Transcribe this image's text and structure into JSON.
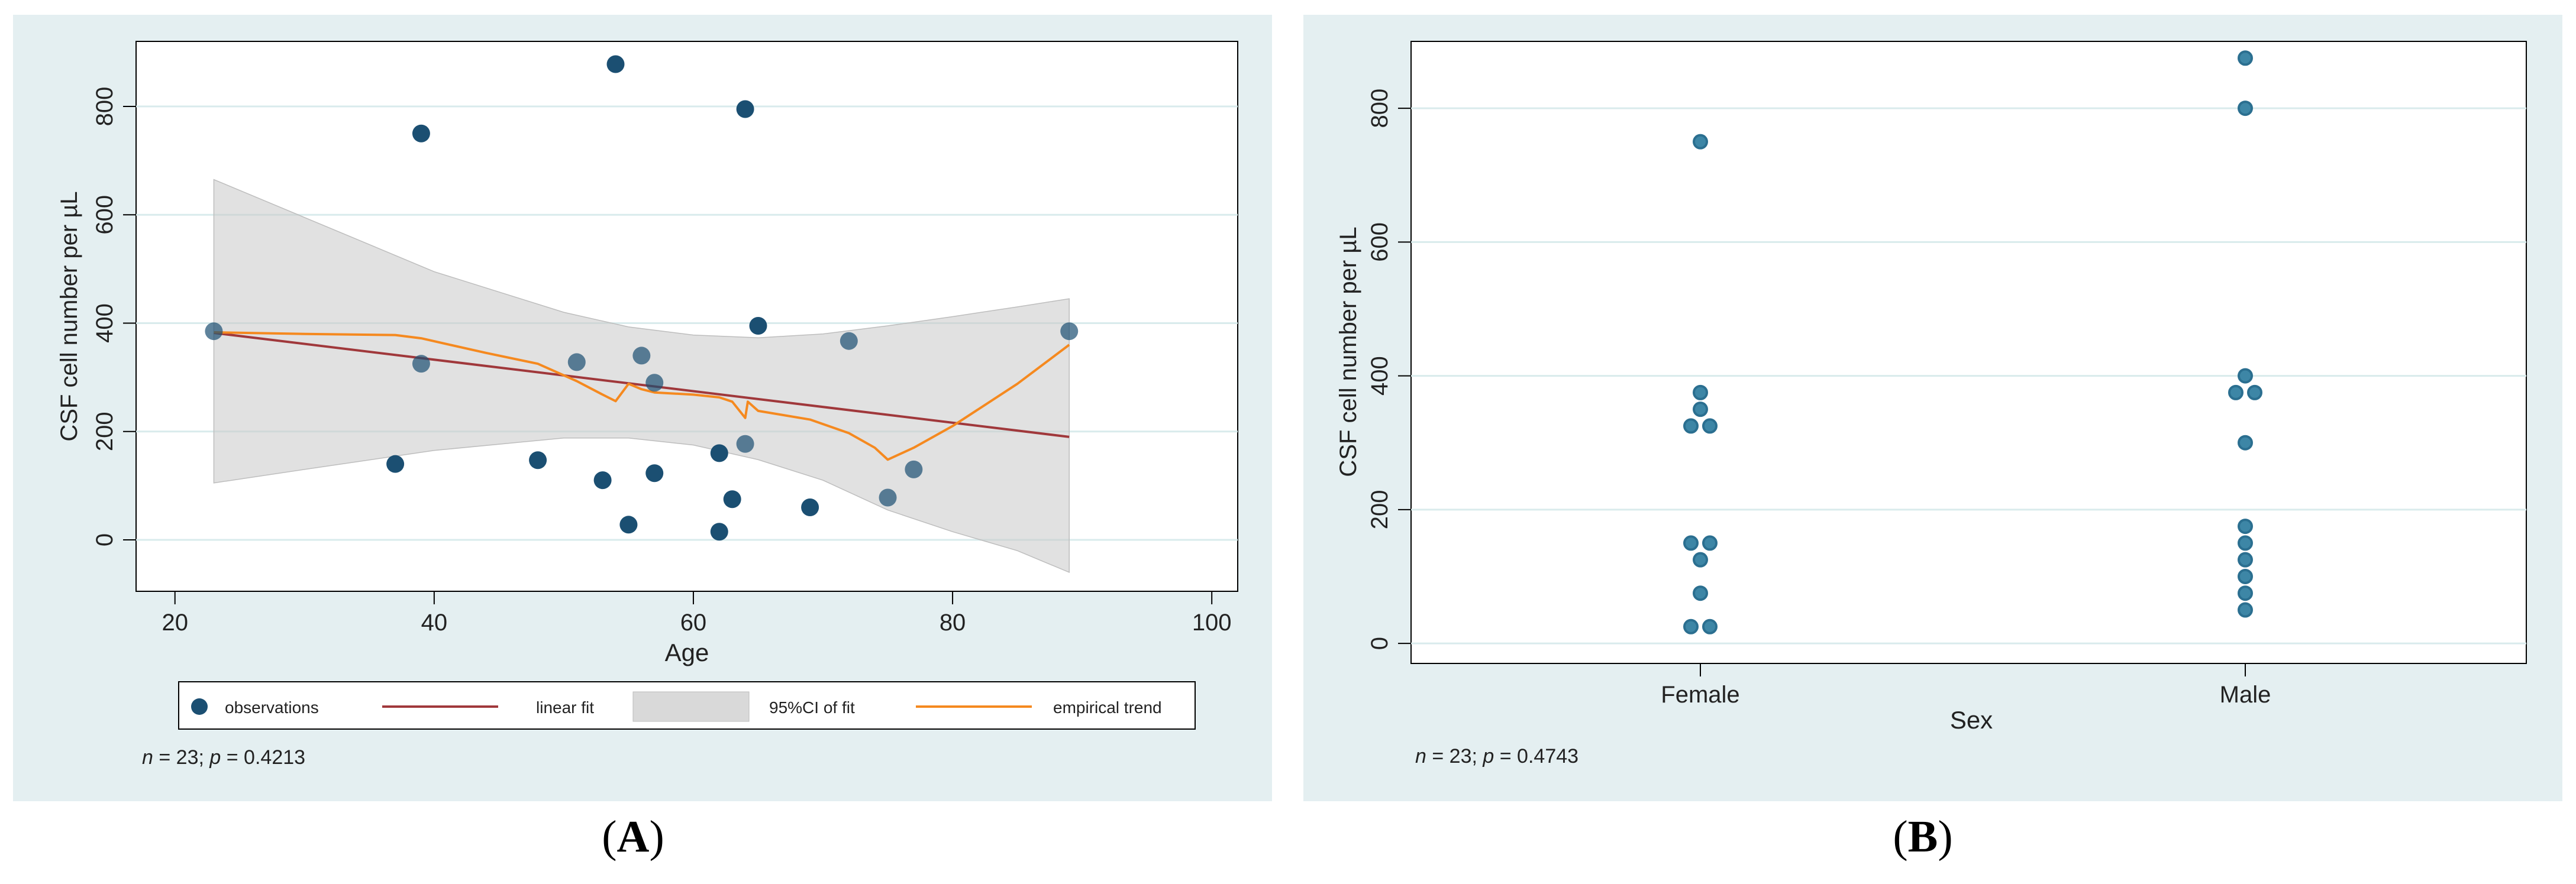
{
  "panels": [
    {
      "label": "A",
      "note_n": "n",
      "note_rest": " = 23; ",
      "note_p": "p",
      "note_value": " = 0.4213"
    },
    {
      "label": "B",
      "note_n": "n",
      "note_rest": " = 23; ",
      "note_p": "p",
      "note_value": " = 0.4743"
    }
  ],
  "colors": {
    "panel_bg": "#e4eff1",
    "plot_bg": "#ffffff",
    "grid": "#d9ebec",
    "marker": "#1b4f72",
    "marker_b": "#2b6f90",
    "marker_b_fill": "#3d86a6",
    "linear_fit": "#a0383b",
    "ci_fill": "#c8c8c8",
    "empirical": "#f5891f"
  },
  "chart_data": [
    {
      "type": "scatter",
      "title": "",
      "xlabel": "Age",
      "ylabel": "CSF cell number per µL",
      "xlim": [
        17,
        102
      ],
      "ylim": [
        -95,
        920
      ],
      "xticks": [
        20,
        40,
        60,
        80,
        100
      ],
      "yticks": [
        0,
        200,
        400,
        600,
        800
      ],
      "grid": "horizontal",
      "legend": {
        "position": "bottom",
        "items": [
          "observations",
          "linear fit",
          "95%CI of fit",
          "empirical trend"
        ]
      },
      "series": [
        {
          "name": "observations",
          "type": "scatter",
          "points": [
            {
              "x": 23,
              "y": 385
            },
            {
              "x": 37,
              "y": 140
            },
            {
              "x": 39,
              "y": 750
            },
            {
              "x": 39,
              "y": 325
            },
            {
              "x": 48,
              "y": 147
            },
            {
              "x": 51,
              "y": 328
            },
            {
              "x": 53,
              "y": 110
            },
            {
              "x": 54,
              "y": 878
            },
            {
              "x": 55,
              "y": 28
            },
            {
              "x": 56,
              "y": 340
            },
            {
              "x": 57,
              "y": 290
            },
            {
              "x": 57,
              "y": 123
            },
            {
              "x": 62,
              "y": 160
            },
            {
              "x": 62,
              "y": 15
            },
            {
              "x": 63,
              "y": 75
            },
            {
              "x": 64,
              "y": 795
            },
            {
              "x": 64,
              "y": 177
            },
            {
              "x": 65,
              "y": 395
            },
            {
              "x": 69,
              "y": 60
            },
            {
              "x": 72,
              "y": 367
            },
            {
              "x": 75,
              "y": 78
            },
            {
              "x": 77,
              "y": 130
            },
            {
              "x": 89,
              "y": 385
            }
          ]
        },
        {
          "name": "linear fit",
          "type": "line",
          "points": [
            {
              "x": 23,
              "y": 382
            },
            {
              "x": 89,
              "y": 190
            }
          ]
        },
        {
          "name": "95%CI of fit",
          "type": "area",
          "upper": [
            {
              "x": 23,
              "y": 665
            },
            {
              "x": 30,
              "y": 595
            },
            {
              "x": 40,
              "y": 495
            },
            {
              "x": 50,
              "y": 420
            },
            {
              "x": 55,
              "y": 393
            },
            {
              "x": 60,
              "y": 378
            },
            {
              "x": 65,
              "y": 373
            },
            {
              "x": 70,
              "y": 380
            },
            {
              "x": 75,
              "y": 395
            },
            {
              "x": 80,
              "y": 412
            },
            {
              "x": 85,
              "y": 430
            },
            {
              "x": 89,
              "y": 445
            }
          ],
          "lower": [
            {
              "x": 23,
              "y": 105
            },
            {
              "x": 30,
              "y": 130
            },
            {
              "x": 40,
              "y": 165
            },
            {
              "x": 50,
              "y": 188
            },
            {
              "x": 55,
              "y": 188
            },
            {
              "x": 60,
              "y": 175
            },
            {
              "x": 65,
              "y": 148
            },
            {
              "x": 70,
              "y": 110
            },
            {
              "x": 75,
              "y": 55
            },
            {
              "x": 80,
              "y": 15
            },
            {
              "x": 85,
              "y": -20
            },
            {
              "x": 89,
              "y": -60
            }
          ]
        },
        {
          "name": "empirical trend",
          "type": "line",
          "points": [
            {
              "x": 23,
              "y": 383
            },
            {
              "x": 30,
              "y": 380
            },
            {
              "x": 37,
              "y": 378
            },
            {
              "x": 39,
              "y": 372
            },
            {
              "x": 44,
              "y": 345
            },
            {
              "x": 48,
              "y": 325
            },
            {
              "x": 51,
              "y": 293
            },
            {
              "x": 53,
              "y": 268
            },
            {
              "x": 54,
              "y": 256
            },
            {
              "x": 55,
              "y": 288
            },
            {
              "x": 56,
              "y": 278
            },
            {
              "x": 57,
              "y": 272
            },
            {
              "x": 60,
              "y": 268
            },
            {
              "x": 62,
              "y": 263
            },
            {
              "x": 63,
              "y": 255
            },
            {
              "x": 64,
              "y": 225
            },
            {
              "x": 64.2,
              "y": 255
            },
            {
              "x": 65,
              "y": 238
            },
            {
              "x": 69,
              "y": 222
            },
            {
              "x": 72,
              "y": 197
            },
            {
              "x": 74,
              "y": 170
            },
            {
              "x": 75,
              "y": 148
            },
            {
              "x": 77,
              "y": 170
            },
            {
              "x": 80,
              "y": 210
            },
            {
              "x": 85,
              "y": 288
            },
            {
              "x": 89,
              "y": 360
            }
          ]
        }
      ]
    },
    {
      "type": "scatter",
      "title": "",
      "xlabel": "Sex",
      "ylabel": "CSF cell number per µL",
      "categories": [
        "Female",
        "Male"
      ],
      "ylim": [
        -30,
        900
      ],
      "yticks": [
        0,
        200,
        400,
        600,
        800
      ],
      "grid": "horizontal",
      "series": [
        {
          "category": "Female",
          "points": [
            {
              "y": 750,
              "offset": 0
            },
            {
              "y": 375,
              "offset": 0
            },
            {
              "y": 350,
              "offset": 0
            },
            {
              "y": 325,
              "offset": -1
            },
            {
              "y": 325,
              "offset": 1
            },
            {
              "y": 150,
              "offset": -1
            },
            {
              "y": 150,
              "offset": 1
            },
            {
              "y": 125,
              "offset": 0
            },
            {
              "y": 75,
              "offset": 0
            },
            {
              "y": 25,
              "offset": -1
            },
            {
              "y": 25,
              "offset": 1
            }
          ]
        },
        {
          "category": "Male",
          "points": [
            {
              "y": 875,
              "offset": 0
            },
            {
              "y": 800,
              "offset": 0
            },
            {
              "y": 400,
              "offset": 0
            },
            {
              "y": 375,
              "offset": -1
            },
            {
              "y": 375,
              "offset": 1
            },
            {
              "y": 300,
              "offset": 0
            },
            {
              "y": 175,
              "offset": 0
            },
            {
              "y": 150,
              "offset": 0
            },
            {
              "y": 125,
              "offset": 0
            },
            {
              "y": 100,
              "offset": 0
            },
            {
              "y": 75,
              "offset": 0
            },
            {
              "y": 50,
              "offset": 0
            }
          ]
        }
      ]
    }
  ]
}
